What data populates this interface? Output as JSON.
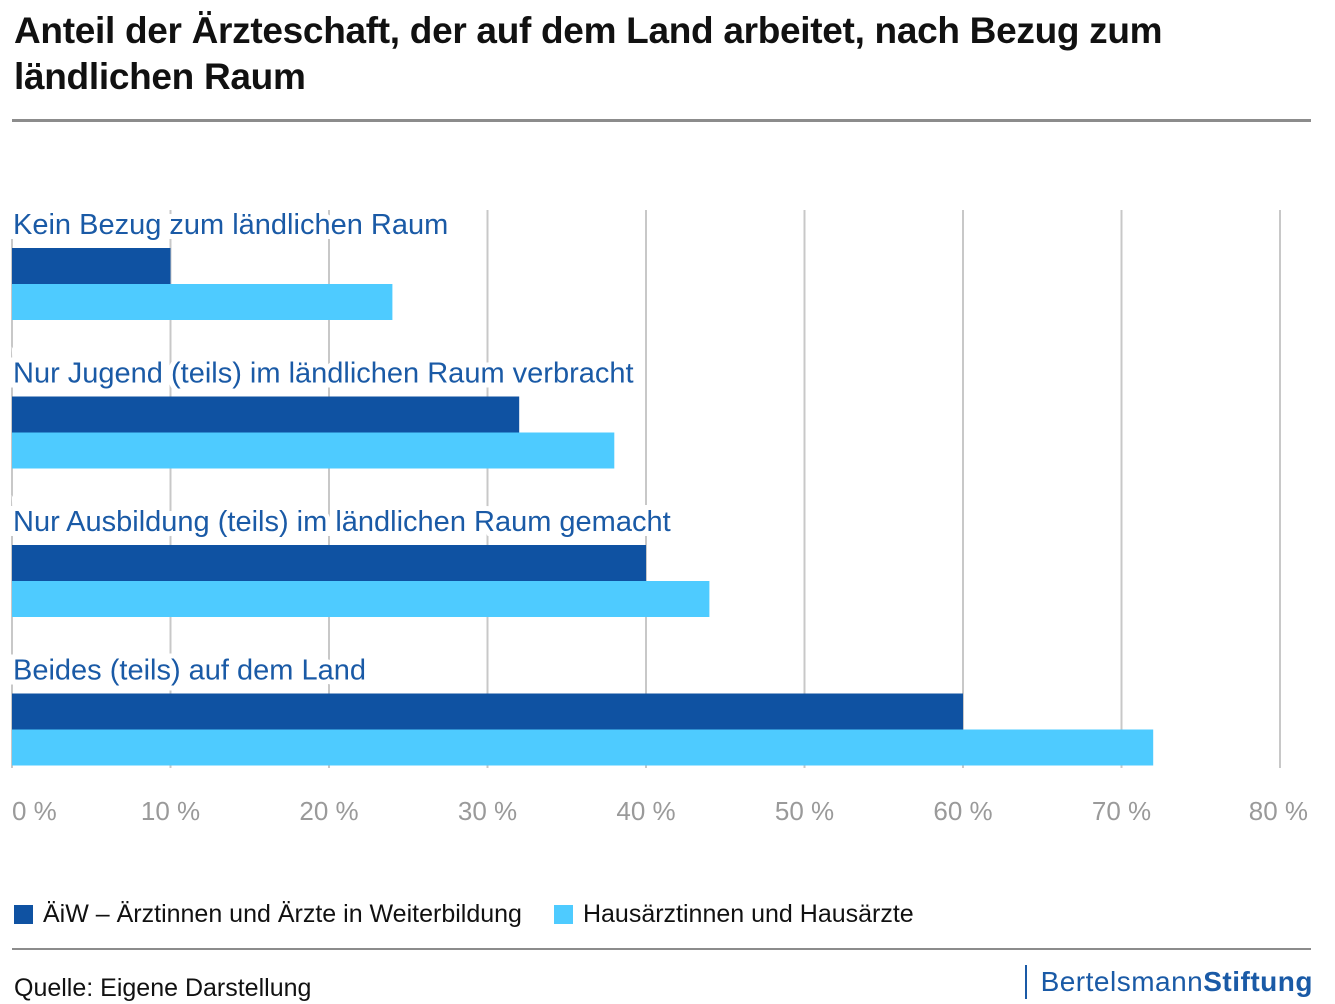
{
  "title": "Anteil der Ärzteschaft, der auf dem Land arbeitet, nach Bezug zum ländlichen Raum",
  "colors": {
    "series1": "#0f52a2",
    "series2": "#4ecbff",
    "category_label": "#1a5aa6",
    "grid": "#c8c8c8",
    "tick": "#9a9a9a"
  },
  "chart_data": {
    "type": "bar",
    "orientation": "horizontal",
    "categories": [
      "Kein Bezug zum ländlichen Raum",
      "Nur Jugend (teils) im ländlichen Raum verbracht",
      "Nur Ausbildung (teils) im ländlichen Raum gemacht",
      "Beides (teils) auf dem Land"
    ],
    "series": [
      {
        "name": "ÄiW – Ärztinnen und Ärzte in Weiterbildung",
        "values": [
          10,
          32,
          40,
          60
        ]
      },
      {
        "name": "Hausärztinnen und Hausärzte",
        "values": [
          24,
          38,
          44,
          72
        ]
      }
    ],
    "xlim": [
      0,
      80
    ],
    "xticks": [
      "0 %",
      "10 %",
      "20 %",
      "30 %",
      "40 %",
      "50 %",
      "60 %",
      "70 %",
      "80 %"
    ],
    "grid": true,
    "legend": "bottom-left"
  },
  "footer": {
    "source": "Quelle: Eigene Darstellung",
    "brand_light": "Bertelsmann",
    "brand_bold": "Stiftung"
  }
}
